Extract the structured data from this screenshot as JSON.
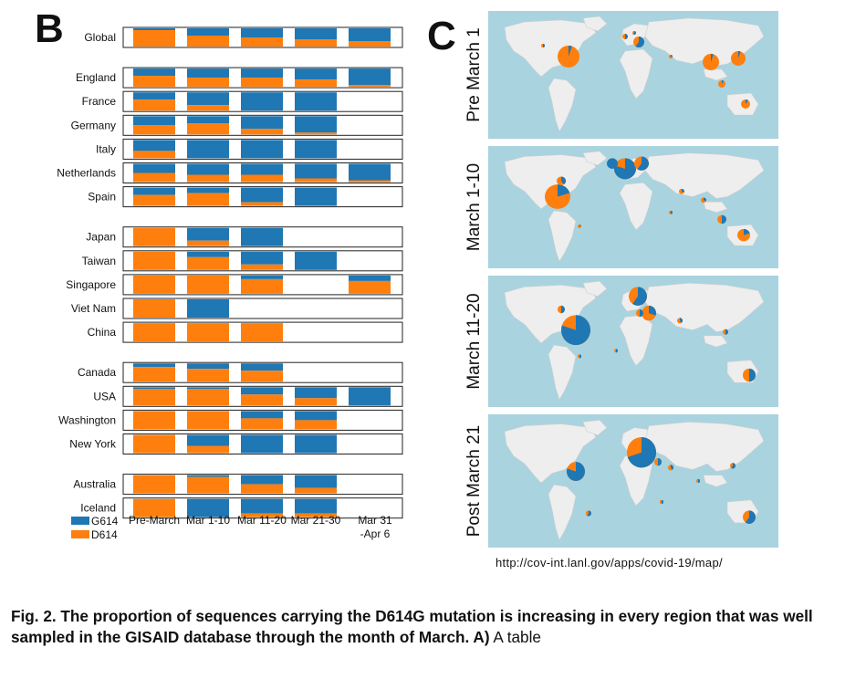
{
  "panels": {
    "b_letter": "B",
    "c_letter": "C"
  },
  "chart_data": {
    "type": "bar",
    "subtype": "stacked-proportion-table",
    "columns": [
      "Pre-March",
      "Mar 1-10",
      "Mar 11-20",
      "Mar 21-30",
      "Mar 31\n-Apr 6"
    ],
    "series_colors": {
      "G614": "#1f77b4",
      "D614": "#ff7f0e"
    },
    "legend": [
      {
        "name": "G614",
        "color": "#1f77b4"
      },
      {
        "name": "D614",
        "color": "#ff7f0e"
      }
    ],
    "groups": [
      [
        {
          "region": "Global",
          "g614": [
            0.1,
            0.4,
            0.5,
            0.6,
            0.7
          ]
        }
      ],
      [
        {
          "region": "England",
          "g614": [
            0.4,
            0.5,
            0.5,
            0.6,
            0.9
          ]
        },
        {
          "region": "France",
          "g614": [
            0.4,
            0.7,
            1.0,
            1.0,
            null
          ]
        },
        {
          "region": "Germany",
          "g614": [
            0.5,
            0.4,
            0.7,
            0.9,
            null
          ]
        },
        {
          "region": "Italy",
          "g614": [
            0.6,
            1.0,
            1.0,
            1.0,
            null
          ]
        },
        {
          "region": "Netherlands",
          "g614": [
            0.5,
            0.6,
            0.6,
            0.8,
            0.9
          ]
        },
        {
          "region": "Spain",
          "g614": [
            0.4,
            0.3,
            0.8,
            1.0,
            null
          ]
        }
      ],
      [
        {
          "region": "Japan",
          "g614": [
            0.0,
            0.7,
            1.0,
            null,
            null
          ]
        },
        {
          "region": "Taiwan",
          "g614": [
            0.0,
            0.3,
            0.7,
            1.0,
            null
          ]
        },
        {
          "region": "Singapore",
          "g614": [
            0.0,
            0.0,
            0.2,
            null,
            0.3
          ]
        },
        {
          "region": "Viet Nam",
          "g614": [
            0.0,
            1.0,
            null,
            null,
            null
          ]
        },
        {
          "region": "China",
          "g614": [
            0.0,
            0.0,
            0.0,
            null,
            null
          ]
        }
      ],
      [
        {
          "region": "Canada",
          "g614": [
            0.2,
            0.3,
            0.4,
            null,
            null
          ]
        },
        {
          "region": "USA",
          "g614": [
            0.1,
            0.1,
            0.4,
            0.6,
            1.0
          ]
        },
        {
          "region": "Washington",
          "g614": [
            0.0,
            0.0,
            0.4,
            0.5,
            null
          ]
        },
        {
          "region": "New York",
          "g614": [
            0.0,
            0.6,
            1.0,
            1.0,
            null
          ]
        }
      ],
      [
        {
          "region": "Australia",
          "g614": [
            0.0,
            0.1,
            0.5,
            0.7,
            null
          ]
        },
        {
          "region": "Iceland",
          "g614": [
            0.0,
            1.0,
            0.8,
            0.8,
            null
          ]
        }
      ]
    ]
  },
  "maps": {
    "ocean_color": "#a9d3df",
    "land_color": "#eeeeee",
    "periods": [
      {
        "label": "Pre March 1",
        "g614_share": 0.1
      },
      {
        "label": "March 1-10",
        "g614_share": 0.5
      },
      {
        "label": "March 11-20",
        "g614_share": 0.7
      },
      {
        "label": "Post March 21",
        "g614_share": 0.85
      }
    ],
    "source_url": "http://cov-int.lanl.gov/apps/covid-19/map/"
  },
  "caption": {
    "bold": "Fig. 2. The proportion of sequences carrying the D614G mutation is increasing in every region that was well sampled in the GISAID database through the month of March. A)",
    "normal": " A table"
  }
}
